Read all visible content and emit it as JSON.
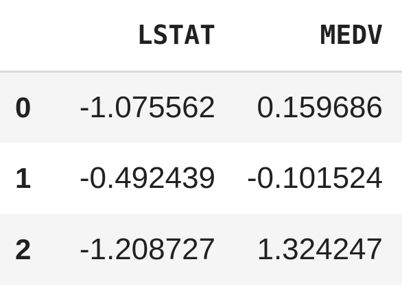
{
  "table": {
    "columns": [
      "LSTAT",
      "MEDV"
    ],
    "rows": [
      {
        "index": "0",
        "LSTAT": "-1.075562",
        "MEDV": "0.159686"
      },
      {
        "index": "1",
        "LSTAT": "-0.492439",
        "MEDV": "-0.101524"
      },
      {
        "index": "2",
        "LSTAT": "-1.208727",
        "MEDV": "1.324247"
      }
    ]
  }
}
